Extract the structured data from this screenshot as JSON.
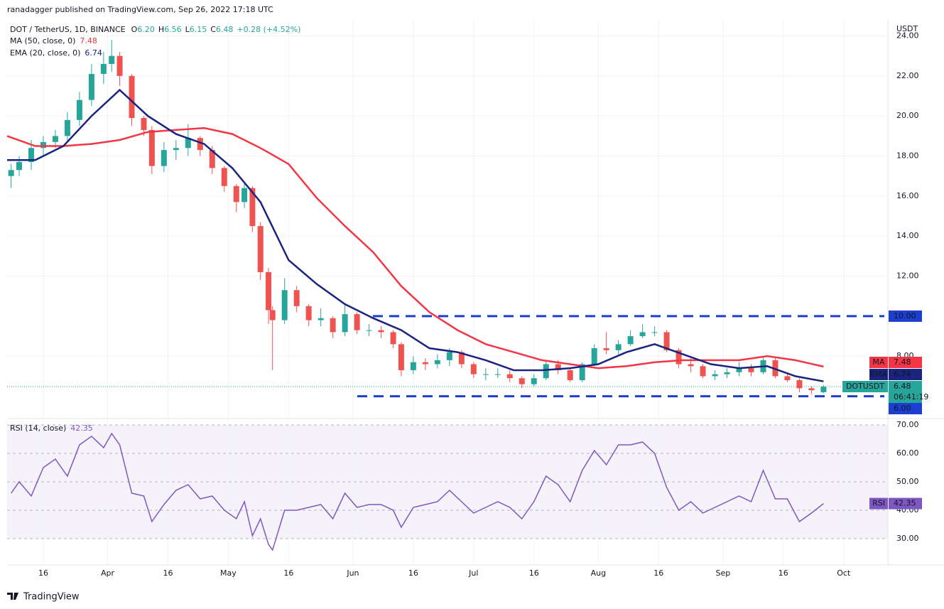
{
  "header": {
    "published": "ranadagger published on TradingView.com, Sep 26, 2022 17:18 UTC"
  },
  "footer": {
    "brand": "TradingView"
  },
  "chart_data": [
    {
      "type": "candlestick",
      "title": "DOT / TetherUS, 1D, BINANCE",
      "ohlc_summary": [
        {
          "label": "O",
          "text": "6.20"
        },
        {
          "label": "H",
          "text": "6.56"
        },
        {
          "label": "L",
          "text": "6.15"
        },
        {
          "label": "C",
          "text": "6.48"
        }
      ],
      "change": "+0.28 (+4.52%)",
      "currency": "USDT",
      "x": [
        "2022-03-08",
        "2022-03-10",
        "2022-03-13",
        "2022-03-16",
        "2022-03-19",
        "2022-03-22",
        "2022-03-25",
        "2022-03-28",
        "2022-03-31",
        "2022-04-02",
        "2022-04-04",
        "2022-04-07",
        "2022-04-10",
        "2022-04-12",
        "2022-04-15",
        "2022-04-18",
        "2022-04-21",
        "2022-04-24",
        "2022-04-27",
        "2022-04-30",
        "2022-05-03",
        "2022-05-05",
        "2022-05-07",
        "2022-05-09",
        "2022-05-11",
        "2022-05-12",
        "2022-05-15",
        "2022-05-18",
        "2022-05-21",
        "2022-05-24",
        "2022-05-27",
        "2022-05-30",
        "2022-06-02",
        "2022-06-05",
        "2022-06-08",
        "2022-06-11",
        "2022-06-13",
        "2022-06-16",
        "2022-06-19",
        "2022-06-22",
        "2022-06-25",
        "2022-06-28",
        "2022-07-01",
        "2022-07-04",
        "2022-07-07",
        "2022-07-10",
        "2022-07-13",
        "2022-07-16",
        "2022-07-19",
        "2022-07-22",
        "2022-07-25",
        "2022-07-28",
        "2022-07-31",
        "2022-08-03",
        "2022-08-06",
        "2022-08-09",
        "2022-08-12",
        "2022-08-15",
        "2022-08-18",
        "2022-08-21",
        "2022-08-24",
        "2022-08-27",
        "2022-08-30",
        "2022-09-02",
        "2022-09-05",
        "2022-09-08",
        "2022-09-11",
        "2022-09-14",
        "2022-09-17",
        "2022-09-20",
        "2022-09-23",
        "2022-09-26"
      ],
      "open": [
        17.0,
        17.3,
        17.7,
        18.4,
        18.7,
        19.0,
        19.8,
        20.8,
        22.1,
        22.6,
        23.0,
        22.0,
        19.9,
        19.3,
        17.5,
        18.3,
        18.4,
        18.9,
        18.3,
        17.4,
        16.5,
        15.7,
        16.4,
        14.5,
        12.2,
        10.3,
        9.8,
        11.3,
        10.5,
        9.8,
        9.9,
        9.2,
        10.1,
        9.3,
        9.3,
        9.2,
        8.6,
        7.3,
        7.7,
        7.6,
        7.8,
        8.2,
        7.6,
        7.1,
        7.1,
        7.1,
        6.9,
        6.6,
        6.9,
        7.6,
        7.3,
        6.8,
        7.6,
        8.4,
        8.3,
        8.6,
        9.0,
        9.2,
        9.2,
        8.3,
        7.6,
        7.5,
        7.0,
        7.1,
        7.2,
        7.4,
        7.2,
        7.8,
        7.0,
        6.8,
        6.4,
        6.2
      ],
      "high": [
        17.6,
        18.0,
        18.8,
        19.0,
        19.3,
        20.2,
        21.2,
        22.6,
        23.2,
        23.8,
        23.2,
        22.1,
        20.0,
        19.5,
        18.7,
        18.8,
        19.6,
        19.0,
        18.5,
        17.5,
        16.6,
        16.6,
        16.5,
        14.7,
        12.4,
        10.5,
        11.9,
        11.5,
        10.6,
        10.4,
        10.0,
        10.6,
        10.2,
        9.6,
        9.5,
        9.3,
        8.7,
        8.0,
        7.9,
        8.1,
        8.4,
        8.3,
        7.7,
        7.4,
        7.4,
        7.3,
        7.0,
        7.1,
        7.8,
        7.8,
        7.4,
        7.7,
        8.6,
        9.2,
        8.8,
        9.3,
        9.6,
        9.5,
        9.3,
        8.4,
        7.9,
        7.6,
        7.3,
        7.4,
        7.7,
        7.6,
        8.0,
        7.9,
        7.2,
        6.9,
        6.5,
        6.56
      ],
      "low": [
        16.4,
        17.0,
        17.3,
        18.0,
        18.4,
        18.7,
        19.5,
        20.5,
        21.6,
        22.2,
        21.5,
        19.5,
        19.0,
        17.1,
        17.2,
        17.8,
        18.0,
        18.0,
        17.1,
        16.2,
        15.2,
        15.4,
        14.2,
        11.8,
        9.6,
        7.3,
        9.6,
        10.2,
        9.5,
        9.5,
        8.9,
        9.0,
        9.1,
        9.0,
        8.9,
        8.4,
        7.0,
        7.1,
        7.3,
        7.4,
        7.5,
        7.4,
        6.9,
        6.8,
        6.9,
        6.7,
        6.4,
        6.5,
        6.8,
        7.1,
        6.7,
        6.7,
        7.5,
        8.1,
        8.1,
        8.5,
        8.9,
        9.0,
        8.2,
        7.4,
        7.2,
        6.9,
        6.8,
        6.9,
        7.0,
        7.0,
        7.1,
        6.9,
        6.7,
        6.2,
        6.1,
        6.15
      ],
      "close": [
        17.3,
        17.7,
        18.4,
        18.7,
        19.0,
        19.8,
        20.8,
        22.1,
        22.6,
        23.0,
        22.0,
        19.9,
        19.3,
        17.5,
        18.3,
        18.4,
        18.9,
        18.3,
        17.4,
        16.5,
        15.7,
        16.4,
        14.5,
        12.2,
        10.3,
        9.8,
        11.3,
        10.5,
        9.8,
        9.9,
        9.2,
        10.1,
        9.3,
        9.3,
        9.2,
        8.6,
        7.3,
        7.7,
        7.6,
        7.8,
        8.2,
        7.6,
        7.1,
        7.1,
        7.1,
        6.9,
        6.6,
        6.9,
        7.6,
        7.3,
        6.8,
        7.6,
        8.4,
        8.3,
        8.6,
        9.0,
        9.2,
        9.2,
        8.3,
        7.6,
        7.5,
        7.0,
        7.1,
        7.2,
        7.4,
        7.2,
        7.8,
        7.0,
        6.8,
        6.4,
        6.3,
        6.48
      ],
      "up_color": "#26a69a",
      "down_color": "#ef5350",
      "xlim": [
        "2022-03-07",
        "2022-10-12"
      ],
      "xticks": [
        {
          "value": "2022-03-16",
          "label": "16"
        },
        {
          "value": "2022-04-01",
          "label": "Apr"
        },
        {
          "value": "2022-04-16",
          "label": "16"
        },
        {
          "value": "2022-05-01",
          "label": "May"
        },
        {
          "value": "2022-05-16",
          "label": "16"
        },
        {
          "value": "2022-06-01",
          "label": "Jun"
        },
        {
          "value": "2022-06-16",
          "label": "16"
        },
        {
          "value": "2022-07-01",
          "label": "Jul"
        },
        {
          "value": "2022-07-16",
          "label": "16"
        },
        {
          "value": "2022-08-01",
          "label": "Aug"
        },
        {
          "value": "2022-08-16",
          "label": "16"
        },
        {
          "value": "2022-09-01",
          "label": "Sep"
        },
        {
          "value": "2022-09-16",
          "label": "16"
        },
        {
          "value": "2022-10-01",
          "label": "Oct"
        }
      ],
      "ylim": [
        4.92,
        24.8
      ],
      "yticks": [
        {
          "value": 8,
          "label": "8.00"
        },
        {
          "value": 12,
          "label": "12.00"
        },
        {
          "value": 14,
          "label": "14.00"
        },
        {
          "value": 16,
          "label": "16.00"
        },
        {
          "value": 18,
          "label": "18.00"
        },
        {
          "value": 20,
          "label": "20.00"
        },
        {
          "value": 22,
          "label": "22.00"
        },
        {
          "value": 24,
          "label": "24.00"
        }
      ],
      "grid": true,
      "series": [
        {
          "name": "MA (50, close, 0)",
          "tag": "MA",
          "last_label": "7.48",
          "color": "#f23645",
          "x": [
            "2022-03-07",
            "2022-03-14",
            "2022-03-21",
            "2022-03-28",
            "2022-04-04",
            "2022-04-11",
            "2022-04-18",
            "2022-04-25",
            "2022-05-02",
            "2022-05-09",
            "2022-05-16",
            "2022-05-23",
            "2022-05-30",
            "2022-06-06",
            "2022-06-13",
            "2022-06-20",
            "2022-06-27",
            "2022-07-04",
            "2022-07-11",
            "2022-07-18",
            "2022-07-25",
            "2022-08-01",
            "2022-08-08",
            "2022-08-15",
            "2022-08-22",
            "2022-08-29",
            "2022-09-05",
            "2022-09-12",
            "2022-09-19",
            "2022-09-26"
          ],
          "values": [
            19.0,
            18.5,
            18.5,
            18.6,
            18.8,
            19.2,
            19.3,
            19.4,
            19.1,
            18.4,
            17.6,
            15.9,
            14.5,
            13.2,
            11.5,
            10.2,
            9.3,
            8.6,
            8.2,
            7.8,
            7.6,
            7.4,
            7.5,
            7.7,
            7.8,
            7.8,
            7.8,
            8.0,
            7.8,
            7.48
          ]
        },
        {
          "name": "EMA (20, close, 0)",
          "tag": "EMA",
          "last_label": "6.74",
          "color": "#1a237e",
          "x": [
            "2022-03-07",
            "2022-03-14",
            "2022-03-21",
            "2022-03-28",
            "2022-04-04",
            "2022-04-11",
            "2022-04-18",
            "2022-04-25",
            "2022-05-02",
            "2022-05-09",
            "2022-05-16",
            "2022-05-23",
            "2022-05-30",
            "2022-06-06",
            "2022-06-13",
            "2022-06-20",
            "2022-06-27",
            "2022-07-04",
            "2022-07-11",
            "2022-07-18",
            "2022-07-25",
            "2022-08-01",
            "2022-08-08",
            "2022-08-15",
            "2022-08-22",
            "2022-08-29",
            "2022-09-05",
            "2022-09-12",
            "2022-09-19",
            "2022-09-26"
          ],
          "values": [
            17.8,
            17.8,
            18.5,
            20.0,
            21.3,
            20.0,
            19.1,
            18.6,
            17.4,
            15.7,
            12.8,
            11.6,
            10.6,
            9.9,
            9.3,
            8.4,
            8.2,
            7.8,
            7.3,
            7.3,
            7.4,
            7.6,
            8.2,
            8.6,
            8.1,
            7.6,
            7.4,
            7.5,
            7.0,
            6.74
          ]
        }
      ],
      "levels": [
        {
          "value": 10,
          "label": "10.00",
          "color": "#1c3fd0"
        },
        {
          "value": 6,
          "label": "6.00",
          "color": "#1c3fd0"
        }
      ],
      "last_price": {
        "symbol": "DOTUSDT",
        "label": "6.48",
        "countdown": "06:41:19"
      }
    },
    {
      "type": "line",
      "title": "RSI (14, close)",
      "tag": "RSI",
      "last_label": "42.35",
      "color": "#7e57c2",
      "x": [
        "2022-03-08",
        "2022-03-10",
        "2022-03-13",
        "2022-03-16",
        "2022-03-19",
        "2022-03-22",
        "2022-03-25",
        "2022-03-28",
        "2022-03-31",
        "2022-04-02",
        "2022-04-04",
        "2022-04-07",
        "2022-04-10",
        "2022-04-12",
        "2022-04-15",
        "2022-04-18",
        "2022-04-21",
        "2022-04-24",
        "2022-04-27",
        "2022-04-30",
        "2022-05-03",
        "2022-05-05",
        "2022-05-07",
        "2022-05-09",
        "2022-05-11",
        "2022-05-12",
        "2022-05-15",
        "2022-05-18",
        "2022-05-21",
        "2022-05-24",
        "2022-05-27",
        "2022-05-30",
        "2022-06-02",
        "2022-06-05",
        "2022-06-08",
        "2022-06-11",
        "2022-06-13",
        "2022-06-16",
        "2022-06-19",
        "2022-06-22",
        "2022-06-25",
        "2022-06-28",
        "2022-07-01",
        "2022-07-04",
        "2022-07-07",
        "2022-07-10",
        "2022-07-13",
        "2022-07-16",
        "2022-07-19",
        "2022-07-22",
        "2022-07-25",
        "2022-07-28",
        "2022-07-31",
        "2022-08-03",
        "2022-08-06",
        "2022-08-09",
        "2022-08-12",
        "2022-08-15",
        "2022-08-18",
        "2022-08-21",
        "2022-08-24",
        "2022-08-27",
        "2022-08-30",
        "2022-09-02",
        "2022-09-05",
        "2022-09-08",
        "2022-09-11",
        "2022-09-14",
        "2022-09-17",
        "2022-09-20",
        "2022-09-23",
        "2022-09-26"
      ],
      "values": [
        46,
        50,
        45,
        55,
        58,
        52,
        63,
        66,
        62,
        67,
        63,
        46,
        45,
        36,
        42,
        47,
        49,
        44,
        45,
        40,
        37,
        43,
        31,
        37,
        28,
        26,
        40,
        40,
        41,
        42,
        37,
        46,
        41,
        42,
        42,
        40,
        34,
        41,
        42,
        43,
        47,
        43,
        39,
        41,
        43,
        41,
        37,
        43,
        52,
        49,
        43,
        54,
        61,
        56,
        63,
        63,
        64,
        60,
        48,
        40,
        43,
        39,
        41,
        43,
        45,
        43,
        54,
        44,
        44,
        36,
        39,
        42.35
      ],
      "ylim": [
        20.75,
        72
      ],
      "yticks": [
        {
          "value": 30,
          "label": "30.00"
        },
        {
          "value": 40,
          "label": "40.00"
        },
        {
          "value": 50,
          "label": "50.00"
        },
        {
          "value": 60,
          "label": "60.00"
        },
        {
          "value": 70,
          "label": "70.00"
        }
      ],
      "band": [
        30,
        70
      ]
    }
  ]
}
